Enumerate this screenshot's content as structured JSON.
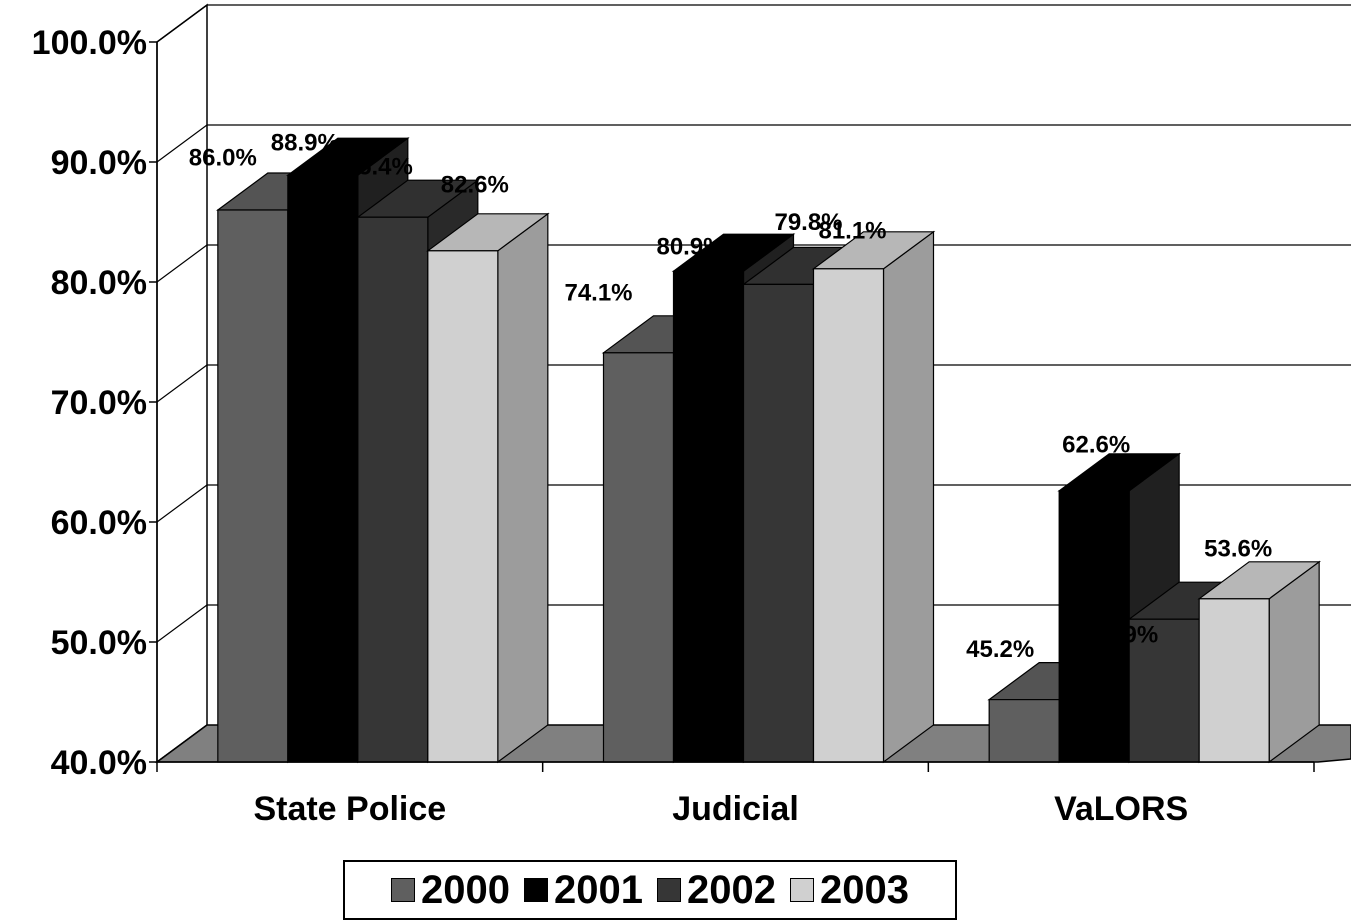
{
  "chart_data": {
    "type": "bar",
    "categories": [
      "State Police",
      "Judicial",
      "VaLORS"
    ],
    "series": [
      {
        "name": "2000",
        "values": [
          86.0,
          74.1,
          45.2
        ],
        "color": "#5f5f5f"
      },
      {
        "name": "2001",
        "values": [
          88.9,
          80.9,
          62.6
        ],
        "color": "#000000"
      },
      {
        "name": "2002",
        "values": [
          85.4,
          79.8,
          51.9
        ],
        "color": "#363636"
      },
      {
        "name": "2003",
        "values": [
          82.6,
          81.1,
          53.6
        ],
        "color": "#d0d0d0"
      }
    ],
    "data_labels": [
      [
        "86.0%",
        "74.1%",
        "45.2%"
      ],
      [
        "88.9%",
        "80.9%",
        "62.6%"
      ],
      [
        "85.4%",
        "79.8%",
        "51.9%"
      ],
      [
        "82.6%",
        "81.1%",
        "53.6%"
      ]
    ],
    "ylim": [
      40,
      100
    ],
    "yticks": [
      "40.0%",
      "50.0%",
      "60.0%",
      "70.0%",
      "80.0%",
      "90.0%",
      "100.0%"
    ],
    "grid": true,
    "legend": "bottom",
    "style": "3d-clustered"
  }
}
